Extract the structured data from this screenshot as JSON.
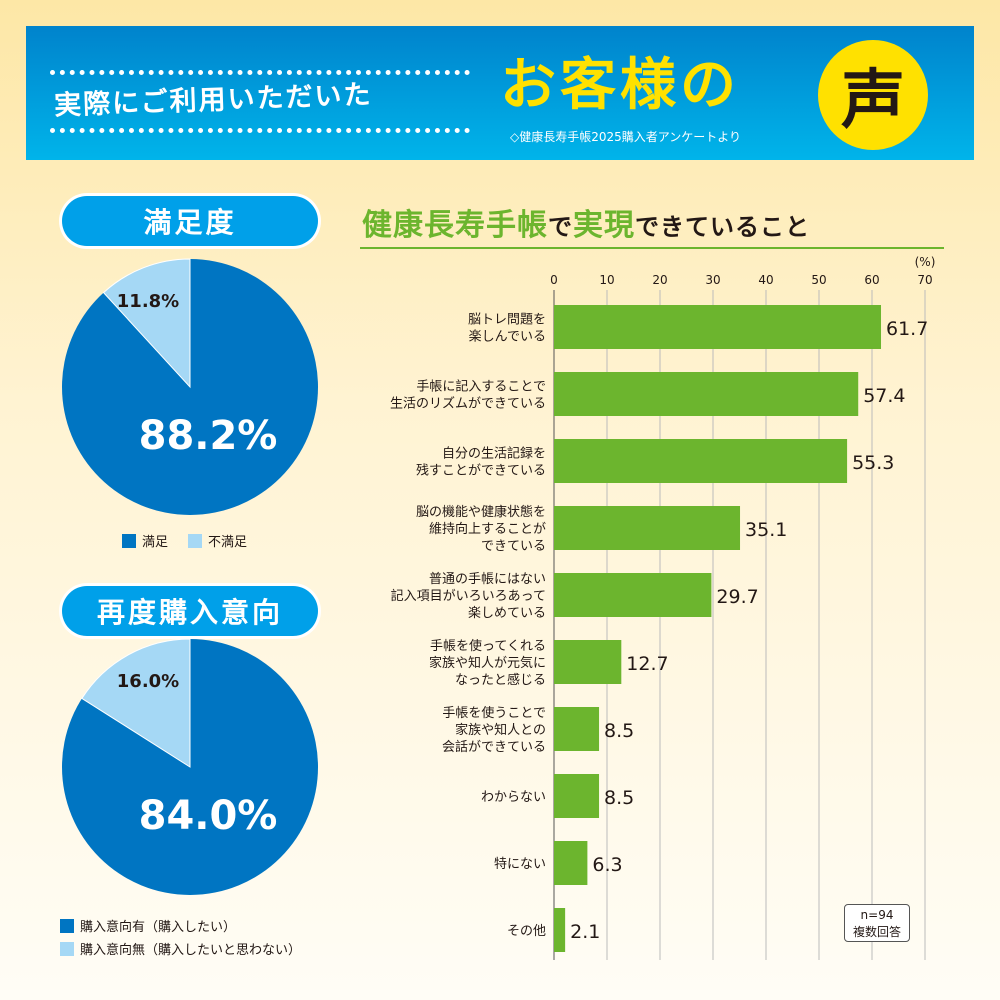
{
  "header": {
    "subtitle": "実際にご利用いただいた",
    "title": "お客様の",
    "bubble": "声",
    "source": "◇健康長寿手帳2025購入者アンケートより"
  },
  "satisfaction": {
    "title": "満足度",
    "slices": [
      {
        "label": "満足",
        "value": 88.2,
        "text": "88.2%",
        "color": "#0075c2"
      },
      {
        "label": "不満足",
        "value": 11.8,
        "text": "11.8%",
        "color": "#a5d8f5"
      }
    ]
  },
  "repurchase": {
    "title": "再度購入意向",
    "slices": [
      {
        "label": "購入意向有（購入したい）",
        "value": 84.0,
        "text": "84.0%",
        "color": "#0075c2"
      },
      {
        "label": "購入意向無（購入したいと思わない）",
        "value": 16.0,
        "text": "16.0%",
        "color": "#a5d8f5"
      }
    ]
  },
  "chart_data": {
    "type": "bar",
    "title_green1": "健康長寿手帳",
    "title_black1": "で",
    "title_green2": "実現",
    "title_black2": "できていること",
    "unit": "(%)",
    "xlim": [
      0,
      70
    ],
    "ticks": [
      "0",
      "10",
      "20",
      "30",
      "40",
      "50",
      "60",
      "70"
    ],
    "categories": [
      "脳トレ問題を\n楽しんでいる",
      "手帳に記入することで\n生活のリズムができている",
      "自分の生活記録を\n残すことができている",
      "脳の機能や健康状態を\n維持向上することが\nできている",
      "普通の手帳にはない\n記入項目がいろいろあって\n楽しめている",
      "手帳を使ってくれる\n家族や知人が元気に\nなったと感じる",
      "手帳を使うことで\n家族や知人との\n会話ができている",
      "わからない",
      "特にない",
      "その他"
    ],
    "values": [
      61.7,
      57.4,
      55.3,
      35.1,
      29.7,
      12.7,
      8.5,
      8.5,
      6.3,
      2.1
    ],
    "labels": [
      "61.7",
      "57.4",
      "55.3",
      "35.1",
      "29.7",
      "12.7",
      "8.5",
      "8.5",
      "6.3",
      "2.1"
    ],
    "bar_color": "#6cb52e",
    "note": [
      "n=94",
      "複数回答"
    ]
  }
}
